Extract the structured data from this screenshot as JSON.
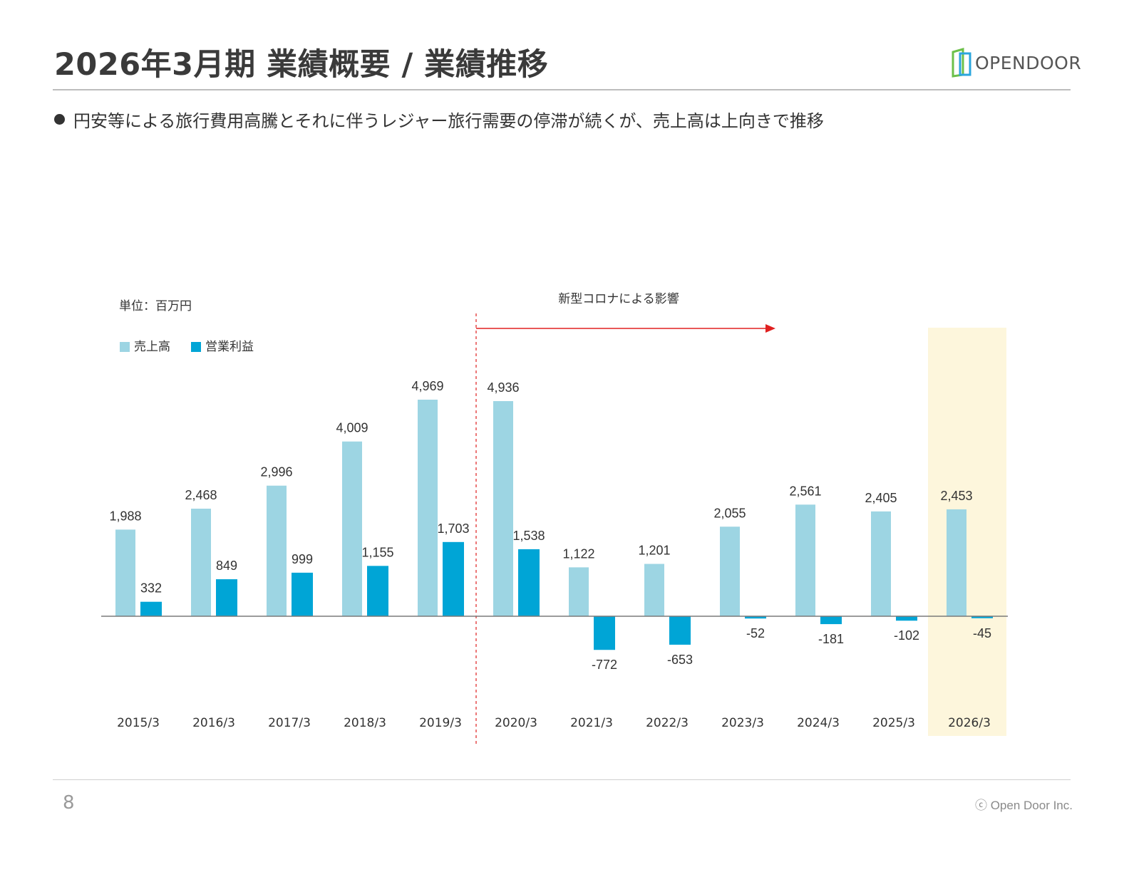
{
  "header": {
    "title": "2026年3月期 業績概要 / 業績推移",
    "logo_text": "OPENDOOR"
  },
  "bullet_text": "円安等による旅行費用高騰とそれに伴うレジャー旅行需要の停滞が続くが、売上高は上向きで推移",
  "footer": {
    "page_number": "8",
    "copyright": "ⓒ Open Door Inc."
  },
  "chart_data": {
    "type": "bar",
    "unit_label": "単位：百万円",
    "annotation": "新型コロナによる影響",
    "categories": [
      "2015/3",
      "2016/3",
      "2017/3",
      "2018/3",
      "2019/3",
      "2020/3",
      "2021/3",
      "2022/3",
      "2023/3",
      "2024/3",
      "2025/3",
      "2026/3"
    ],
    "series": [
      {
        "name": "売上高",
        "color": "#9dd5e3",
        "values": [
          1988,
          2468,
          2996,
          4009,
          4969,
          4936,
          1122,
          1201,
          2055,
          2561,
          2405,
          2453
        ],
        "labels": [
          "1,988",
          "2,468",
          "2,996",
          "4,009",
          "4,969",
          "4,936",
          "1,122",
          "1,201",
          "2,055",
          "2,561",
          "2,405",
          "2,453"
        ]
      },
      {
        "name": "営業利益",
        "color": "#00a5d6",
        "values": [
          332,
          849,
          999,
          1155,
          1703,
          1538,
          -772,
          -653,
          -52,
          -181,
          -102,
          -45
        ],
        "labels": [
          "332",
          "849",
          "999",
          "1,155",
          "1,703",
          "1,538",
          "-772",
          "-653",
          "-52",
          "-181",
          "-102",
          "-45"
        ]
      }
    ],
    "highlight_category": "2026/3",
    "highlight_color": "#fdf6dc",
    "divider_color": "#e02020"
  }
}
